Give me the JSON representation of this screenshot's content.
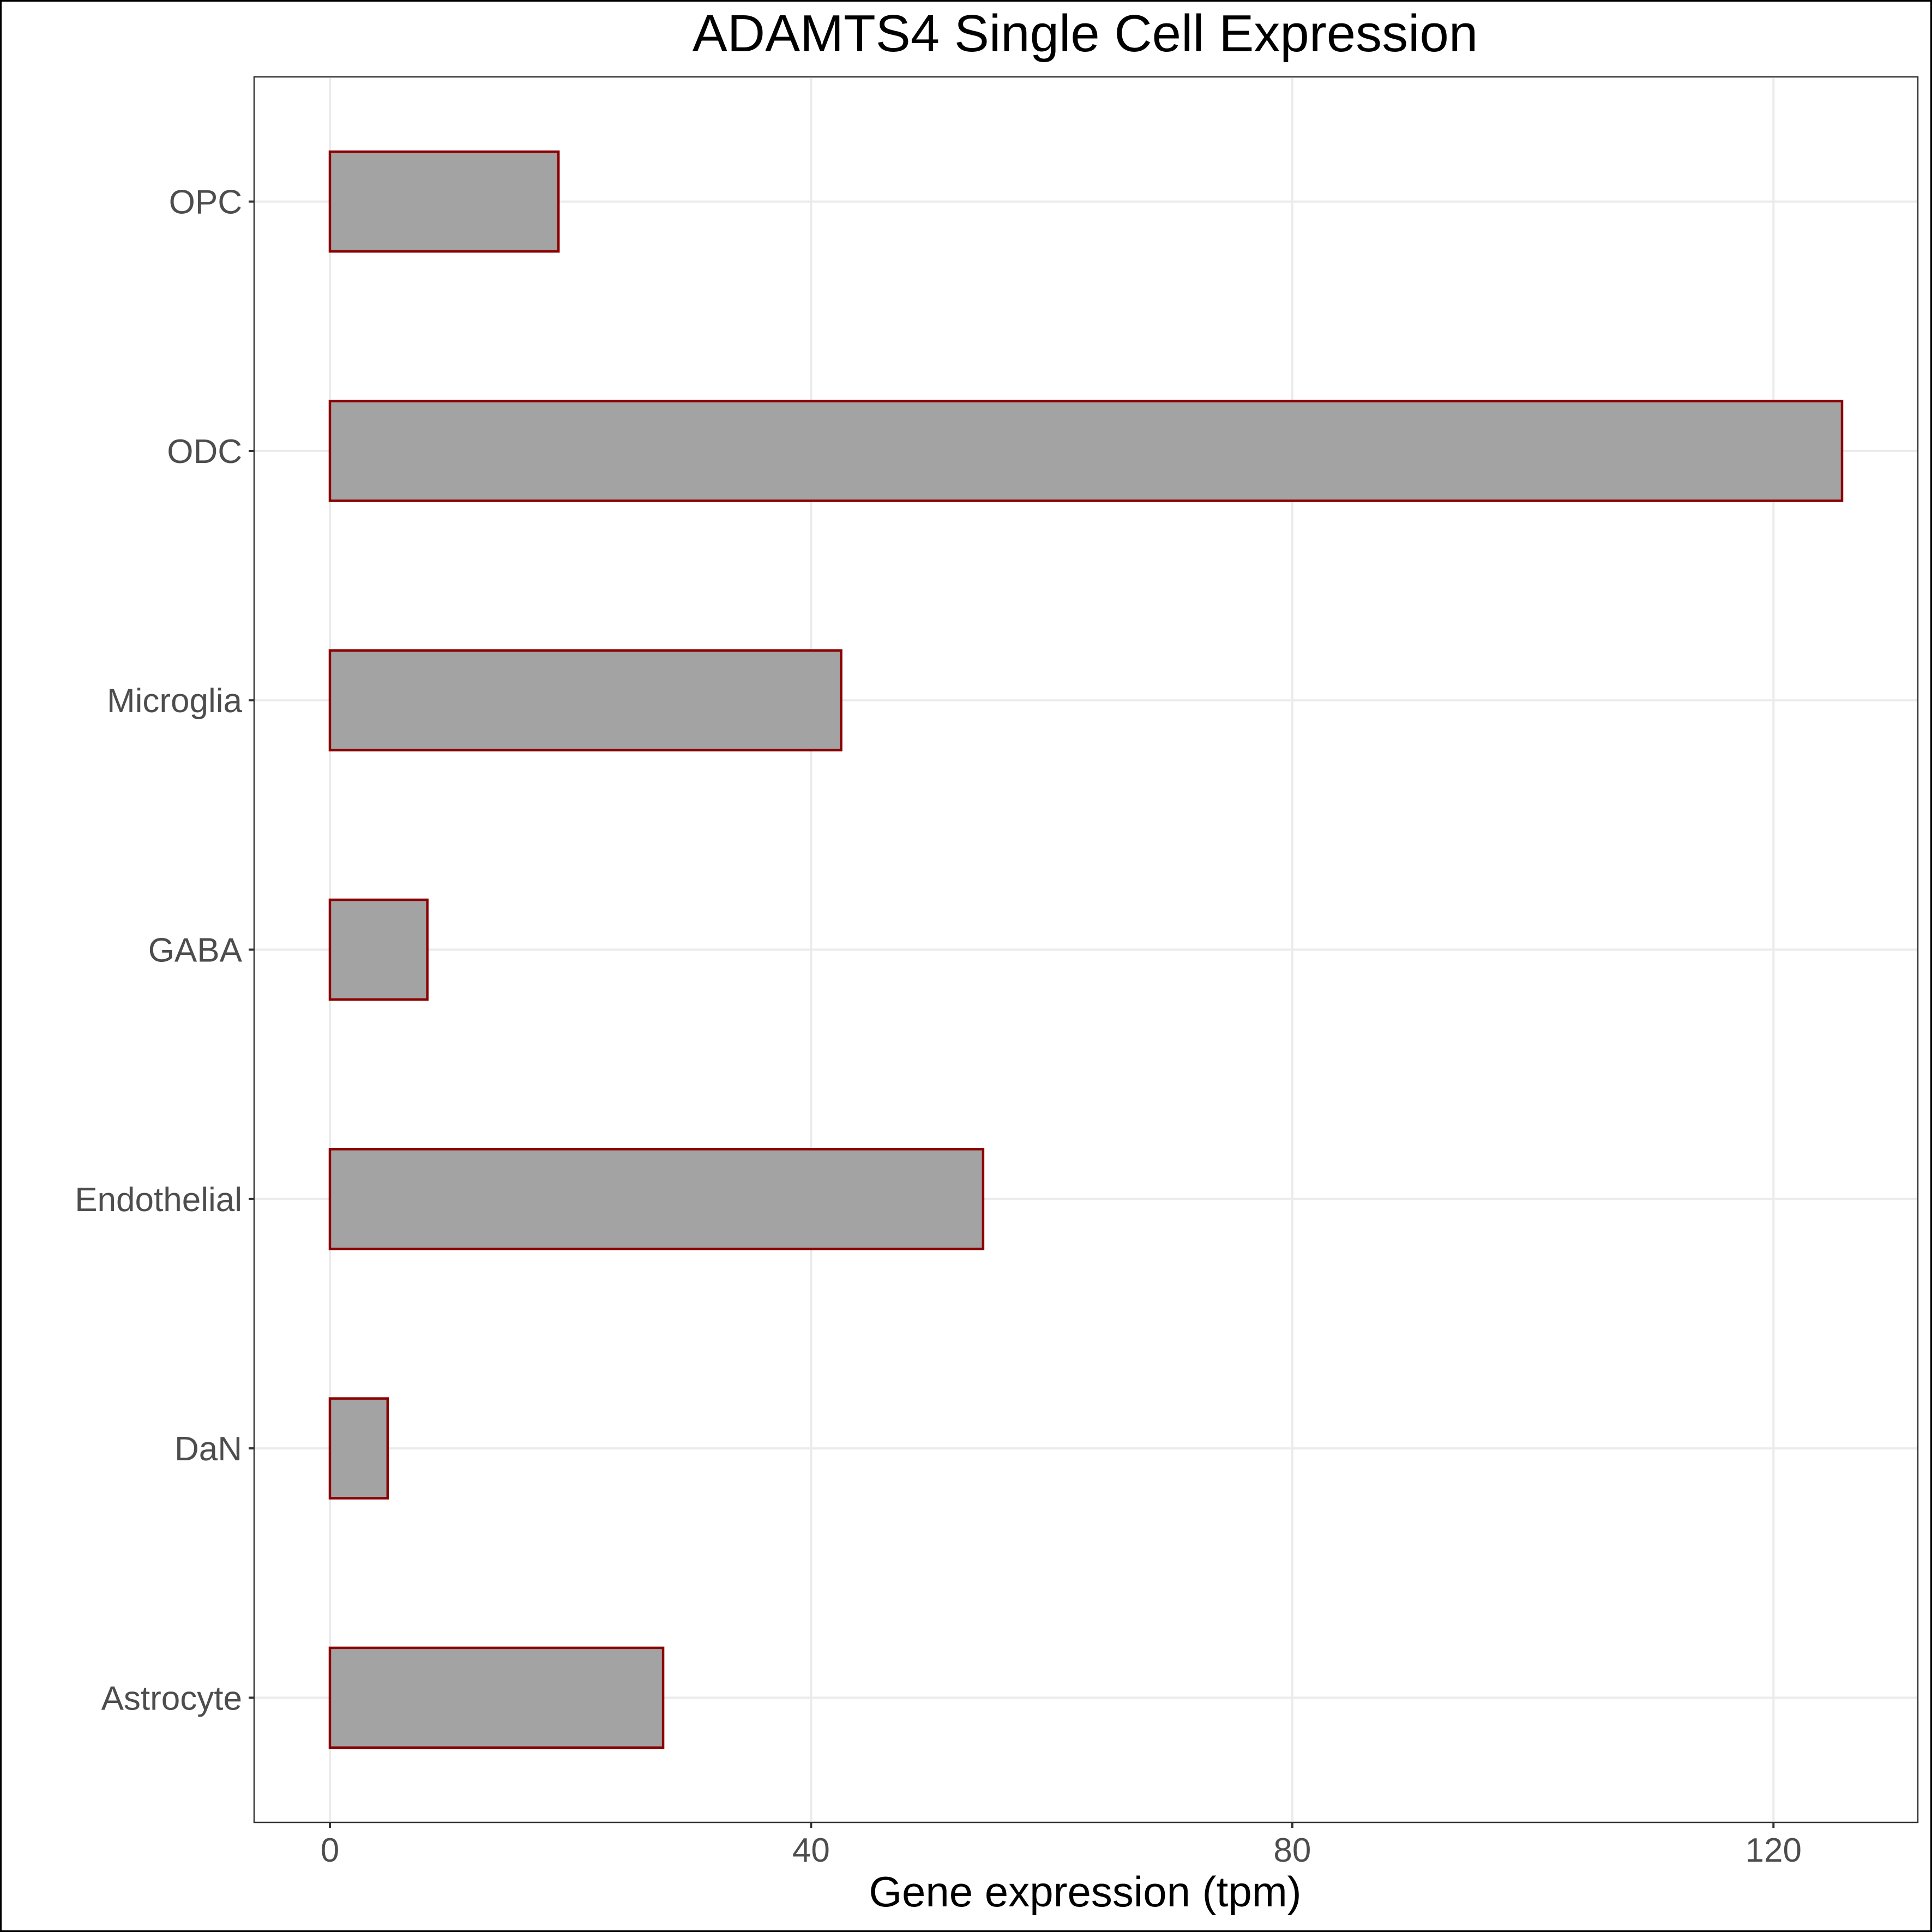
{
  "chart_data": {
    "type": "bar",
    "orientation": "horizontal",
    "title": "ADAMTS4 Single Cell Expression",
    "xlabel": "Gene expression (tpm)",
    "ylabel": "",
    "categories": [
      "Astrocyte",
      "DaN",
      "Endothelial",
      "GABA",
      "Microglia",
      "ODC",
      "OPC"
    ],
    "values": [
      27.7,
      4.8,
      54.3,
      8.1,
      42.5,
      125.7,
      19.0
    ],
    "xlim": [
      -6.3,
      132.0
    ],
    "xticks": [
      0,
      40,
      80,
      120
    ],
    "xtick_labels": [
      "0",
      "40",
      "80",
      "120"
    ],
    "grid": true,
    "legend": "none",
    "colors": {
      "bar_fill": "#a3a3a3",
      "bar_stroke": "#8b0000"
    }
  }
}
